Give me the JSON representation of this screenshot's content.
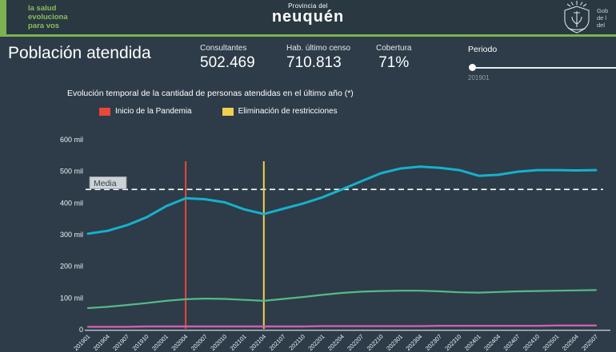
{
  "header": {
    "tagline_lines": [
      "la salud",
      "evoluciona",
      "para vos"
    ],
    "brand_small": "Provincia del",
    "brand_name": "neuquén",
    "gov_lines": [
      "Gob",
      "de l",
      "del"
    ]
  },
  "kpi": {
    "title": "Población atendida",
    "stats": [
      {
        "label": "Consultantes",
        "value": "502.469"
      },
      {
        "label": "Hab. último censo",
        "value": "710.813"
      },
      {
        "label": "Cobertura",
        "value": "71%"
      }
    ],
    "period": {
      "label": "Periodo",
      "value": "201901"
    }
  },
  "chart": {
    "title": "Evolución temporal de la cantidad de personas atendidas en el último año (*)",
    "legend": [
      {
        "label": "Inicio de la Pandemia",
        "color": "#e8473a"
      },
      {
        "label": "Eliminación de restricciones",
        "color": "#f2d04e"
      }
    ],
    "media_label": "Media"
  },
  "chart_data": {
    "type": "line",
    "title": "Evolución temporal de la cantidad de personas atendidas en el último año (*)",
    "unit": "mil (miles de personas)",
    "ylim": [
      0,
      600
    ],
    "yticks": [
      0,
      100,
      200,
      300,
      400,
      500,
      600
    ],
    "ytick_labels": [
      "0",
      "100 mil",
      "200 mil",
      "300 mil",
      "400 mil",
      "500 mil",
      "600 mil"
    ],
    "grid": false,
    "legend_position": "top",
    "categories": [
      "201901",
      "201904",
      "201907",
      "201910",
      "202001",
      "202004",
      "202007",
      "202010",
      "202101",
      "202104",
      "202107",
      "202110",
      "202201",
      "202204",
      "202207",
      "202210",
      "202301",
      "202304",
      "202307",
      "202310",
      "202401",
      "202404",
      "202407",
      "202410",
      "202501",
      "202504",
      "202507"
    ],
    "series": [
      {
        "name": "linea-cian-poblacion-atendida",
        "color": "#16b1cc",
        "width": 3,
        "values": [
          303,
          312,
          330,
          355,
          390,
          415,
          412,
          402,
          380,
          365,
          382,
          398,
          418,
          443,
          469,
          494,
          509,
          515,
          511,
          504,
          486,
          489,
          499,
          504,
          504,
          503,
          504
        ]
      },
      {
        "name": "linea-verde",
        "color": "#57b98a",
        "width": 2.2,
        "values": [
          68,
          72,
          78,
          84,
          91,
          96,
          98,
          97,
          94,
          91,
          97,
          103,
          110,
          116,
          120,
          122,
          123,
          123,
          121,
          118,
          117,
          119,
          121,
          122,
          123,
          124,
          125
        ]
      },
      {
        "name": "linea-rosa",
        "color": "#cf5fae",
        "width": 2.4,
        "values": [
          9,
          9,
          9,
          10,
          10,
          10,
          10,
          10,
          10,
          10,
          10,
          10,
          11,
          11,
          11,
          11,
          11,
          11,
          12,
          12,
          12,
          12,
          12,
          12,
          13,
          13,
          13
        ]
      }
    ],
    "reference_line": {
      "label": "Media",
      "value": 443,
      "style": "dashed",
      "color": "#ffffff"
    },
    "event_lines": [
      {
        "category": "202004",
        "label": "Inicio de la Pandemia",
        "color": "#e8473a"
      },
      {
        "category": "202104",
        "label": "Eliminación de restricciones",
        "color": "#f2d04e"
      }
    ]
  }
}
